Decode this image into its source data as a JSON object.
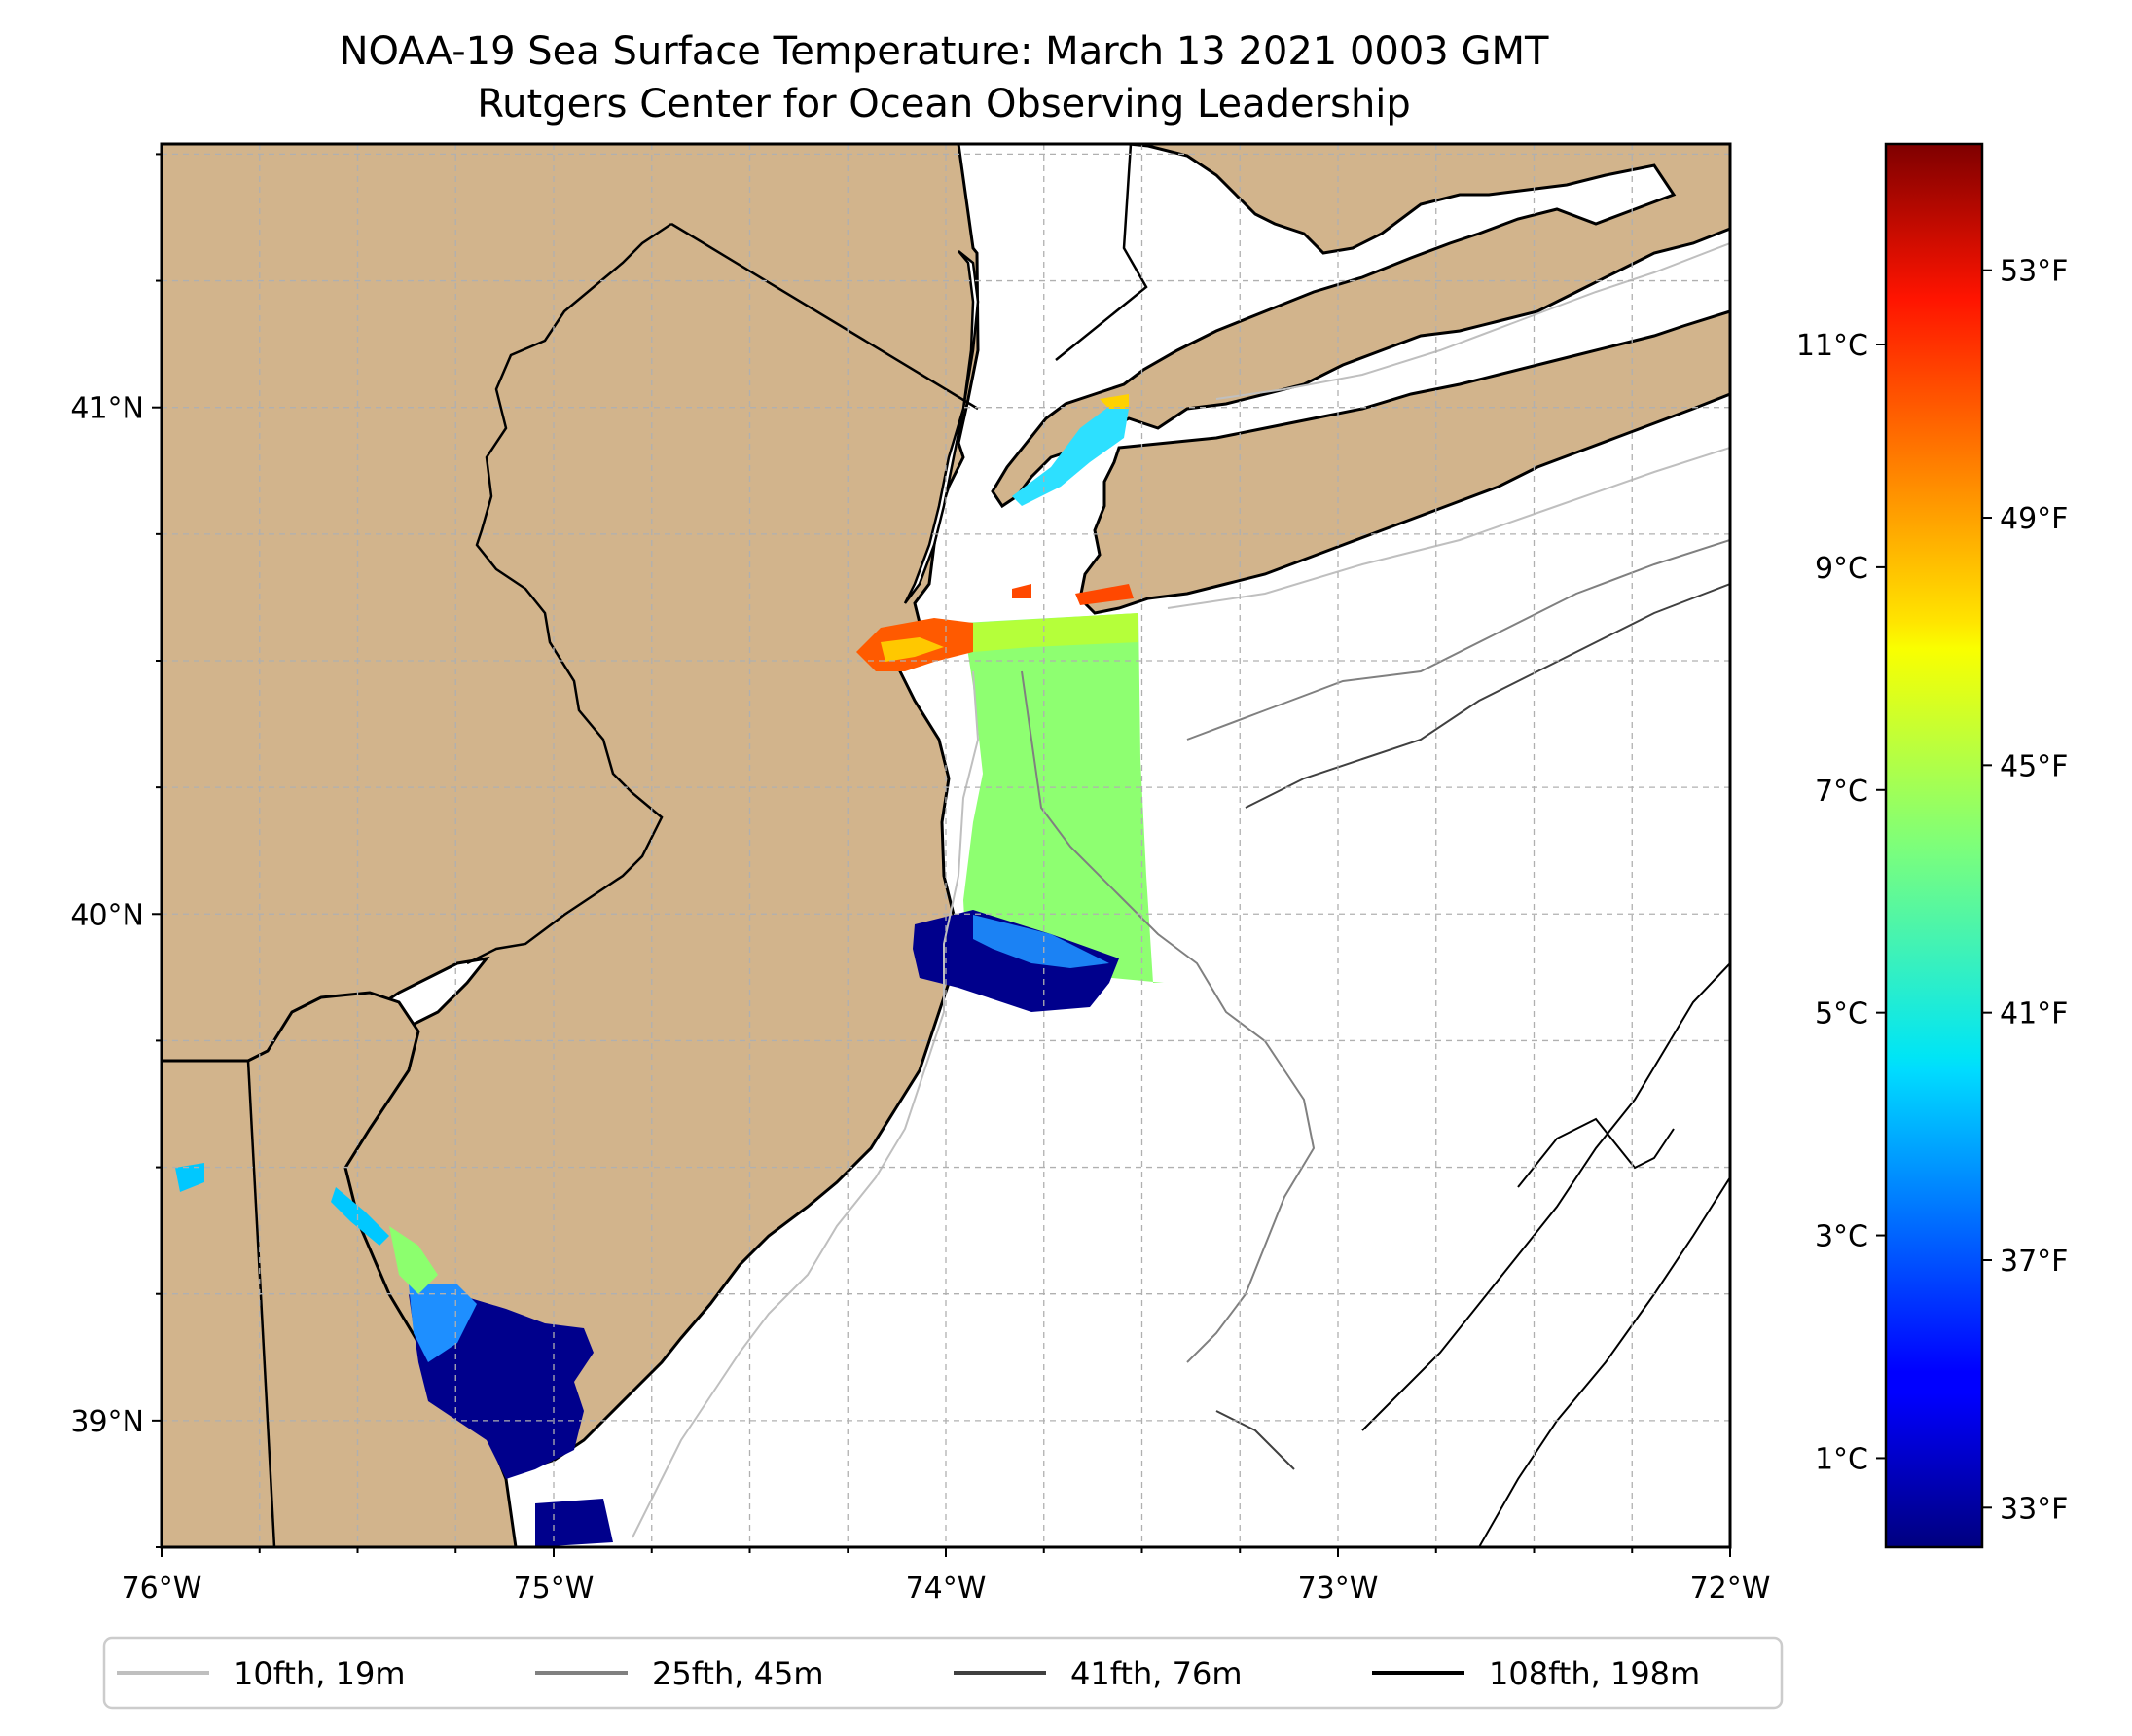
{
  "title": {
    "line1": "NOAA-19 Sea Surface Temperature: March 13 2021 0003 GMT",
    "line2": "Rutgers Center for Ocean Observing Leadership"
  },
  "map": {
    "lon_range": [
      -76,
      -72
    ],
    "lat_range": [
      38.75,
      41.52
    ],
    "land_color": "#d2b48c",
    "water_color": "#ffffff",
    "grid": true,
    "x_ticks": [
      {
        "value": -76,
        "label": "76°W"
      },
      {
        "value": -75,
        "label": "75°W"
      },
      {
        "value": -74,
        "label": "74°W"
      },
      {
        "value": -73,
        "label": "73°W"
      },
      {
        "value": -72,
        "label": "72°W"
      }
    ],
    "y_ticks": [
      {
        "value": 41,
        "label": "41°N"
      },
      {
        "value": 40,
        "label": "40°N"
      },
      {
        "value": 39,
        "label": "39°N"
      }
    ]
  },
  "colorbar": {
    "colormap": "jet",
    "range_c": [
      0.2,
      12.8
    ],
    "celsius_ticks": [
      {
        "value": 1,
        "label": "1°C"
      },
      {
        "value": 3,
        "label": "3°C"
      },
      {
        "value": 5,
        "label": "5°C"
      },
      {
        "value": 7,
        "label": "7°C"
      },
      {
        "value": 9,
        "label": "9°C"
      },
      {
        "value": 11,
        "label": "11°C"
      }
    ],
    "fahrenheit_ticks": [
      {
        "value": 33,
        "label": "33°F"
      },
      {
        "value": 37,
        "label": "37°F"
      },
      {
        "value": 41,
        "label": "41°F"
      },
      {
        "value": 45,
        "label": "45°F"
      },
      {
        "value": 49,
        "label": "49°F"
      },
      {
        "value": 53,
        "label": "53°F"
      }
    ]
  },
  "legend": {
    "placement": "bottom",
    "items": [
      {
        "label": "10fth, 19m",
        "color": "#bfbfbf"
      },
      {
        "label": "25fth, 45m",
        "color": "#808080"
      },
      {
        "label": "41fth, 76m",
        "color": "#404040"
      },
      {
        "label": "108fth, 198m",
        "color": "#000000"
      }
    ]
  }
}
